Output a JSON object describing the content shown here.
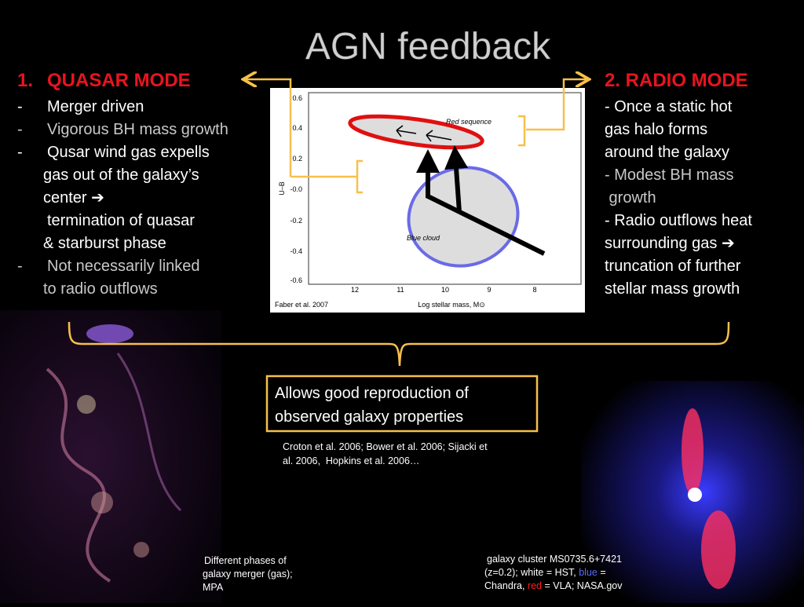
{
  "title": "AGN feedback",
  "quasar_mode": {
    "number": "1.",
    "heading": "QUASAR MODE",
    "items": [
      {
        "marker": "-",
        "lines": [
          "Merger driven"
        ]
      },
      {
        "marker": "-",
        "lines": [
          "Vigorous BH mass growth"
        ]
      },
      {
        "marker": "-",
        "lines": [
          "Qusar wind gas expells",
          "gas out of the galaxy’s",
          "center ➔",
          "termination of quasar",
          "& starburst phase"
        ]
      },
      {
        "marker": "-",
        "lines": [
          "Not necessarily linked",
          "to radio outflows"
        ]
      }
    ]
  },
  "radio_mode": {
    "heading": "2. RADIO MODE",
    "items": [
      {
        "lines": [
          "- Once a static hot",
          "gas halo forms",
          "around the galaxy"
        ]
      },
      {
        "lines": [
          "- Modest BH mass",
          " growth"
        ]
      },
      {
        "lines": [
          "- Radio outflows heat",
          "surrounding gas ➔",
          "truncation of further",
          "stellar mass growth"
        ]
      }
    ]
  },
  "figure": {
    "y_label": "U–B",
    "x_label": "Log stellar mass, M⊙",
    "y_ticks": [
      "0.6",
      "0.4",
      "0.2",
      "-0.0",
      "-0.2",
      "-0.4",
      "-0.6"
    ],
    "x_ticks": [
      "12",
      "11",
      "10",
      "9",
      "8"
    ],
    "red_label": "Red sequence",
    "blue_label": "Blue cloud",
    "credit": "Faber et al. 2007"
  },
  "box": {
    "lines": [
      "Allows good reproduction of",
      "observed galaxy properties"
    ]
  },
  "references": {
    "lines": [
      "Croton et al. 2006; Bower et al. 2006; Sijacki et",
      "al. 2006,  Hopkins et al. 2006…"
    ]
  },
  "caption_left": {
    "lines": [
      "Different phases of",
      "galaxy merger (gas);",
      "MPA"
    ]
  },
  "caption_right": {
    "lines": [
      [
        "galaxy cluster MS0735.6+7421"
      ],
      [
        "(z=0.2); ",
        "white",
        " = HST, ",
        "blue",
        " ="
      ],
      [
        "Chandra, ",
        "red",
        " = VLA; NASA.gov"
      ]
    ]
  }
}
